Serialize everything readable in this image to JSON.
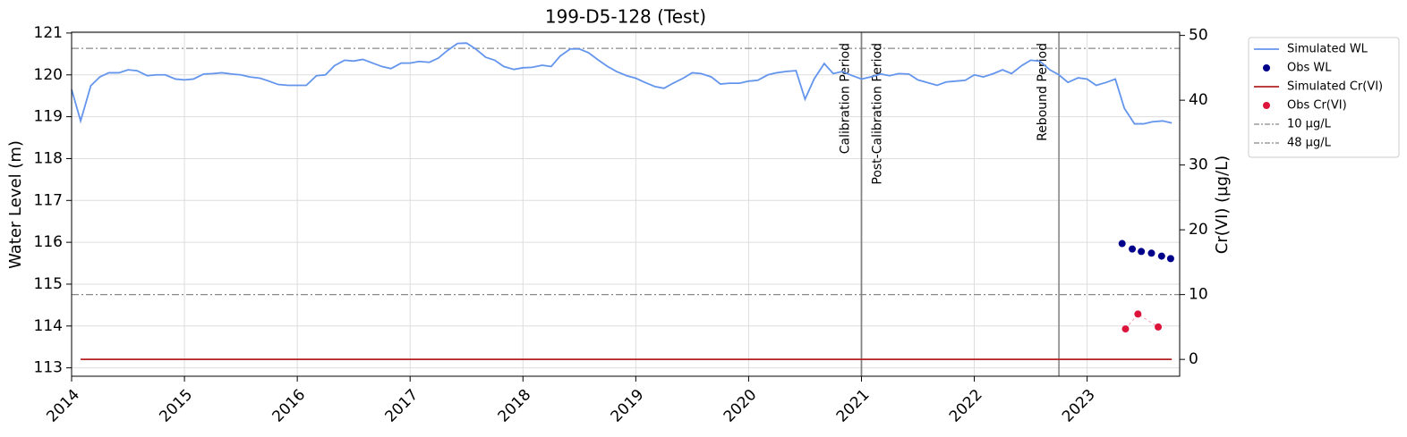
{
  "chart_data": {
    "type": "line",
    "title": "199-D5-128 (Test)",
    "ylabel": "Water Level (m)",
    "y2label": "Cr(VI) (µg/L)",
    "xlim": [
      2014.0,
      2023.82
    ],
    "xticks": [
      2014,
      2015,
      2016,
      2017,
      2018,
      2019,
      2020,
      2021,
      2022,
      2023
    ],
    "ylim": [
      112.8,
      121.02
    ],
    "yticks": [
      113,
      114,
      115,
      116,
      117,
      118,
      119,
      120,
      121
    ],
    "y2lim": [
      -2.6,
      50.5
    ],
    "y2ticks": [
      0,
      10,
      20,
      30,
      40,
      50
    ],
    "grid": true,
    "legend": "outside-right",
    "series": [
      {
        "name": "Simulated WL",
        "kind": "line",
        "color": "#6495ed",
        "axis": "y",
        "x": [
          2014.0,
          2014.08,
          2014.17,
          2014.25,
          2014.33,
          2014.42,
          2014.5,
          2014.58,
          2014.67,
          2014.75,
          2014.83,
          2014.92,
          2015.0,
          2015.08,
          2015.17,
          2015.25,
          2015.33,
          2015.42,
          2015.5,
          2015.58,
          2015.67,
          2015.75,
          2015.83,
          2015.92,
          2016.0,
          2016.08,
          2016.17,
          2016.25,
          2016.33,
          2016.42,
          2016.5,
          2016.58,
          2016.67,
          2016.75,
          2016.83,
          2016.92,
          2017.0,
          2017.08,
          2017.17,
          2017.25,
          2017.33,
          2017.42,
          2017.5,
          2017.58,
          2017.67,
          2017.75,
          2017.83,
          2017.92,
          2018.0,
          2018.08,
          2018.17,
          2018.25,
          2018.33,
          2018.42,
          2018.5,
          2018.58,
          2018.67,
          2018.75,
          2018.83,
          2018.92,
          2019.0,
          2019.08,
          2019.17,
          2019.25,
          2019.33,
          2019.42,
          2019.5,
          2019.58,
          2019.67,
          2019.75,
          2019.83,
          2019.92,
          2020.0,
          2020.08,
          2020.17,
          2020.25,
          2020.33,
          2020.42,
          2020.5,
          2020.58,
          2020.67,
          2020.75,
          2020.83,
          2020.92,
          2021.0,
          2021.08,
          2021.17,
          2021.25,
          2021.33,
          2021.42,
          2021.5,
          2021.58,
          2021.67,
          2021.75,
          2021.83,
          2021.92,
          2022.0,
          2022.08,
          2022.17,
          2022.25,
          2022.33,
          2022.42,
          2022.5,
          2022.58,
          2022.67,
          2022.75,
          2022.83,
          2022.92,
          2023.0,
          2023.08,
          2023.17,
          2023.25,
          2023.33,
          2023.42,
          2023.5,
          2023.58,
          2023.67,
          2023.75
        ],
        "values": [
          119.65,
          118.9,
          119.74,
          119.95,
          120.05,
          120.05,
          120.12,
          120.1,
          119.98,
          120.0,
          120.0,
          119.9,
          119.88,
          119.9,
          120.02,
          120.03,
          120.05,
          120.02,
          120.0,
          119.95,
          119.92,
          119.85,
          119.77,
          119.75,
          119.75,
          119.75,
          119.98,
          120.0,
          120.22,
          120.35,
          120.33,
          120.37,
          120.28,
          120.2,
          120.15,
          120.28,
          120.28,
          120.32,
          120.3,
          120.4,
          120.58,
          120.75,
          120.76,
          120.62,
          120.42,
          120.35,
          120.2,
          120.13,
          120.17,
          120.18,
          120.23,
          120.2,
          120.45,
          120.62,
          120.62,
          120.53,
          120.35,
          120.2,
          120.08,
          119.98,
          119.92,
          119.82,
          119.72,
          119.68,
          119.8,
          119.92,
          120.05,
          120.03,
          119.95,
          119.78,
          119.8,
          119.8,
          119.85,
          119.87,
          120.0,
          120.05,
          120.08,
          120.1,
          119.42,
          119.9,
          120.27,
          120.03,
          120.08,
          119.98,
          119.9,
          119.95,
          120.02,
          119.98,
          120.03,
          120.02,
          119.88,
          119.82,
          119.75,
          119.83,
          119.85,
          119.87,
          120.0,
          119.95,
          120.03,
          120.12,
          120.03,
          120.22,
          120.35,
          120.33,
          120.12,
          120.0,
          119.82,
          119.93,
          119.9,
          119.75,
          119.82,
          119.9,
          119.2,
          118.83,
          118.83,
          118.88,
          118.9,
          118.85
        ]
      },
      {
        "name": "Obs WL",
        "kind": "scatter",
        "color": "#00008b",
        "axis": "y",
        "x": [
          2023.31,
          2023.4,
          2023.48,
          2023.57,
          2023.66,
          2023.74
        ],
        "values": [
          115.97,
          115.84,
          115.78,
          115.74,
          115.67,
          115.61
        ]
      },
      {
        "name": "Simulated Cr(VI)",
        "kind": "line",
        "color": "#b22222",
        "axis": "y2",
        "x": [
          2014.08,
          2023.75
        ],
        "values": [
          0,
          0
        ]
      },
      {
        "name": "Obs Cr(VI)",
        "kind": "scatter",
        "connect": true,
        "color": "#dc143c",
        "axis": "y2",
        "x": [
          2023.34,
          2023.45,
          2023.63
        ],
        "values": [
          4.7,
          7.0,
          5.0
        ]
      }
    ],
    "hlines": [
      {
        "name": "10 µg/L",
        "value": 10,
        "axis": "y2",
        "color": "#888888"
      },
      {
        "name": "48 µg/L",
        "value": 48,
        "axis": "y2",
        "color": "#888888"
      }
    ],
    "annotations": [
      {
        "x": 2021,
        "text": "Calibration Period",
        "side": "left"
      },
      {
        "x": 2021,
        "text": "Post-Calibration Period",
        "side": "right"
      },
      {
        "x": 2022.75,
        "text": "Rebound Period",
        "side": "left"
      }
    ]
  }
}
